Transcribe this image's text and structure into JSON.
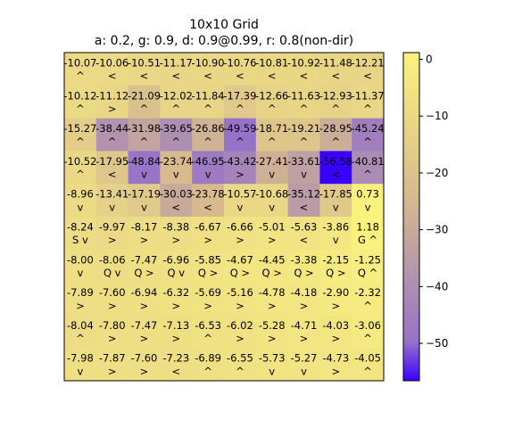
{
  "chart_data": {
    "type": "heatmap",
    "title": "10x10 Grid",
    "subtitle": "a: 0.2, g: 0.9, d: 0.9@0.99, r: 0.8(non-dir)",
    "rows": 10,
    "cols": 10,
    "values": [
      [
        -10.07,
        -10.06,
        -10.51,
        -11.17,
        -10.9,
        -10.76,
        -10.81,
        -10.92,
        -11.48,
        -12.21
      ],
      [
        -10.12,
        -11.12,
        -21.09,
        -12.02,
        -11.84,
        -17.39,
        -12.66,
        -11.63,
        -12.93,
        -11.37
      ],
      [
        -15.27,
        -38.44,
        -31.98,
        -39.65,
        -26.86,
        -49.59,
        -18.71,
        -19.21,
        -28.95,
        -45.24
      ],
      [
        -10.52,
        -17.95,
        -48.84,
        -23.74,
        -46.95,
        -43.42,
        -27.41,
        -33.61,
        -56.58,
        -40.81
      ],
      [
        -8.96,
        -13.41,
        -17.19,
        -30.03,
        -23.78,
        -10.57,
        -10.68,
        -35.12,
        -17.85,
        0.73
      ],
      [
        -8.24,
        -9.97,
        -8.17,
        -8.38,
        -6.67,
        -6.66,
        -5.01,
        -5.63,
        -3.86,
        1.18
      ],
      [
        -8.0,
        -8.06,
        -7.47,
        -6.96,
        -5.85,
        -4.67,
        -4.45,
        -3.38,
        -2.15,
        -1.25
      ],
      [
        -7.89,
        -7.6,
        -6.94,
        -6.32,
        -5.69,
        -5.16,
        -4.78,
        -4.18,
        -2.9,
        -2.32
      ],
      [
        -8.04,
        -7.8,
        -7.47,
        -7.13,
        -6.53,
        -6.02,
        -5.28,
        -4.71,
        -4.03,
        -3.06
      ],
      [
        -7.98,
        -7.87,
        -7.6,
        -7.23,
        -6.89,
        -6.55,
        -5.73,
        -5.27,
        -4.73,
        -4.05
      ]
    ],
    "labels": [
      [
        "^",
        "<",
        "<",
        "<",
        "<",
        "<",
        "<",
        "<",
        "<",
        "<"
      ],
      [
        "^",
        ">",
        "^",
        "^",
        "^",
        "^",
        "^",
        "^",
        "^",
        "^"
      ],
      [
        "^",
        "^",
        "^",
        "^",
        "^",
        "^",
        "^",
        "^",
        "^",
        "^"
      ],
      [
        "^",
        "<",
        "v",
        "v",
        "v",
        ">",
        "v",
        "v",
        "<",
        "^"
      ],
      [
        "v",
        "v",
        "v",
        "<",
        "<",
        "v",
        "v",
        "<",
        "v",
        "v"
      ],
      [
        "S v",
        ">",
        ">",
        ">",
        ">",
        ">",
        ">",
        "<",
        "v",
        "G ^"
      ],
      [
        "v",
        "Q v",
        "Q >",
        "Q v",
        "Q >",
        "Q >",
        "Q >",
        "Q >",
        "Q >",
        "Q ^"
      ],
      [
        ">",
        ">",
        ">",
        ">",
        ">",
        ">",
        ">",
        ">",
        ">",
        "^"
      ],
      [
        "^",
        ">",
        ">",
        ">",
        "^",
        ">",
        ">",
        ">",
        ">",
        "^"
      ],
      [
        "v",
        ">",
        ">",
        "<",
        "^",
        "^",
        "v",
        "v",
        ">",
        "^"
      ]
    ],
    "colorbar": {
      "min": -56.58,
      "max": 1.18,
      "ticks": [
        0,
        -10,
        -20,
        -30,
        -40,
        -50
      ],
      "tick_labels": [
        "0",
        "−10",
        "−20",
        "−30",
        "−40",
        "−50"
      ]
    },
    "colors": {
      "high": "#fbf27e",
      "mid": "#d5b88f",
      "low_mid": "#9673c8",
      "low": "#3a00ff",
      "text": "#000000",
      "axis": "#000000"
    },
    "grid": false,
    "legend": "colorbar-right"
  }
}
